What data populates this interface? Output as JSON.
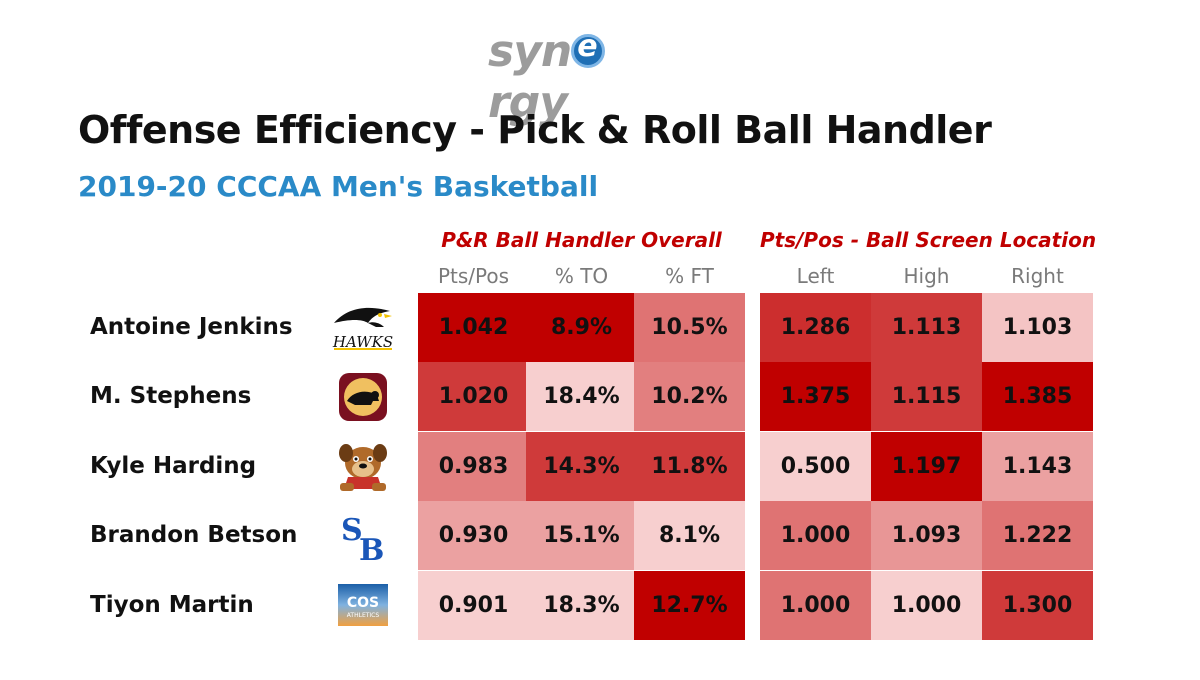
{
  "brand": {
    "word_before": "syn",
    "word_e": "e",
    "word_after": "rgy"
  },
  "title": "Offense Efficiency - Pick & Roll Ball Handler",
  "subtitle": "2019-20 CCCAA Men's Basketball",
  "colors": {
    "title": "#111111",
    "subtitle": "#2a8ac8",
    "group_label": "#c00000",
    "heat_low": "#fde6e6",
    "heat_high": "#c00000"
  },
  "chart_data": {
    "type": "table",
    "title": "Offense Efficiency - Pick & Roll Ball Handler",
    "subtitle": "2019-20 CCCAA Men's Basketball",
    "groups": [
      {
        "label": "P&R Ball Handler Overall",
        "columns": [
          "Pts/Pos",
          "% TO",
          "% FT"
        ]
      },
      {
        "label": "Pts/Pos - Ball Screen Location",
        "columns": [
          "Left",
          "High",
          "Right"
        ]
      }
    ],
    "rows": [
      {
        "player": "Antoine Jenkins",
        "team_logo": "hawks-logo",
        "overall": [
          "1.042",
          "8.9%",
          "10.5%"
        ],
        "location": [
          "1.286",
          "1.113",
          "1.103"
        ],
        "shade": [
          1.0,
          1.0,
          0.5,
          0.8,
          0.75,
          0.15
        ]
      },
      {
        "player": "M. Stephens",
        "team_logo": "panther-logo",
        "overall": [
          "1.020",
          "18.4%",
          "10.2%"
        ],
        "location": [
          "1.375",
          "1.115",
          "1.385"
        ],
        "shade": [
          0.75,
          0.1,
          0.45,
          1.0,
          0.75,
          1.0
        ]
      },
      {
        "player": "Kyle Harding",
        "team_logo": "bulldog-logo",
        "overall": [
          "0.983",
          "14.3%",
          "11.8%"
        ],
        "location": [
          "0.500",
          "1.197",
          "1.143"
        ],
        "shade": [
          0.45,
          0.75,
          0.75,
          0.1,
          1.0,
          0.3
        ]
      },
      {
        "player": "Brandon Betson",
        "team_logo": "sb-logo",
        "overall": [
          "0.930",
          "15.1%",
          "8.1%"
        ],
        "location": [
          "1.000",
          "1.093",
          "1.222"
        ],
        "shade": [
          0.3,
          0.3,
          0.1,
          0.5,
          0.35,
          0.5
        ]
      },
      {
        "player": "Tiyon Martin",
        "team_logo": "cos-athletics-logo",
        "overall": [
          "0.901",
          "18.3%",
          "12.7%"
        ],
        "location": [
          "1.000",
          "1.000",
          "1.300"
        ],
        "shade": [
          0.1,
          0.1,
          1.0,
          0.5,
          0.1,
          0.75
        ]
      }
    ]
  }
}
